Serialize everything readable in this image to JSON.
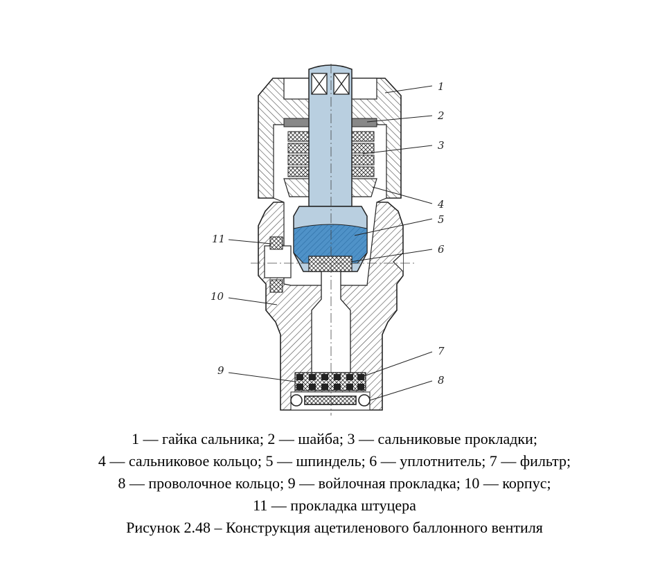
{
  "callouts": [
    "1",
    "2",
    "3",
    "4",
    "5",
    "6",
    "7",
    "8",
    "9",
    "10",
    "11"
  ],
  "legend_lines": [
    "1 — гайка сальника; 2 — шайба; 3 — сальниковые прокладки;",
    "4 — сальниковое кольцо; 5 — шпиндель; 6 — уплотнитель; 7 — фильтр;",
    "8 — проволочное кольцо; 9 — войлочная прокладка; 10 — корпус;",
    "11 — прокладка штуцера"
  ],
  "figure_caption": "Рисунок 2.48 – Конструкция ацетиленового баллонного вентиля",
  "colors": {
    "spindle": "#b9cfe0",
    "spindle_head": "#4f92c8",
    "hatch": "#555555",
    "line": "#222222"
  }
}
